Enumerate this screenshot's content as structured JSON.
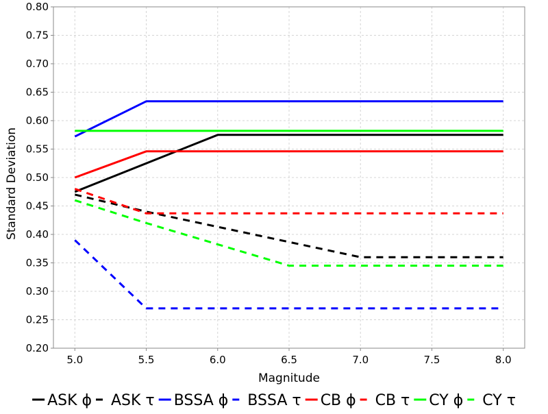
{
  "chart_data": {
    "type": "line",
    "title": "",
    "xlabel": "Magnitude",
    "ylabel": "Standard Deviation",
    "xlim": [
      4.85,
      8.15
    ],
    "ylim": [
      0.2,
      0.8
    ],
    "xticks": [
      "5.0",
      "5.5",
      "6.0",
      "6.5",
      "7.0",
      "7.5",
      "8.0"
    ],
    "yticks": [
      "0.20",
      "0.25",
      "0.30",
      "0.35",
      "0.40",
      "0.45",
      "0.50",
      "0.55",
      "0.60",
      "0.65",
      "0.70",
      "0.75",
      "0.80"
    ],
    "grid": true,
    "legend_position": "bottom",
    "series": [
      {
        "name": "ASK ϕ",
        "color": "#000000",
        "dashed": false,
        "x": [
          5.0,
          6.0,
          8.0
        ],
        "y": [
          0.475,
          0.575,
          0.575
        ]
      },
      {
        "name": "ASK τ",
        "color": "#000000",
        "dashed": true,
        "x": [
          5.0,
          5.5,
          7.0,
          8.0
        ],
        "y": [
          0.47,
          0.44,
          0.36,
          0.36
        ]
      },
      {
        "name": "BSSA ϕ",
        "color": "#0000ff",
        "dashed": false,
        "x": [
          5.0,
          5.5,
          8.0
        ],
        "y": [
          0.572,
          0.634,
          0.634
        ]
      },
      {
        "name": "BSSA τ",
        "color": "#0000ff",
        "dashed": true,
        "x": [
          5.0,
          5.5,
          8.0
        ],
        "y": [
          0.39,
          0.27,
          0.27
        ]
      },
      {
        "name": "CB ϕ",
        "color": "#ff0000",
        "dashed": false,
        "x": [
          5.0,
          5.5,
          8.0
        ],
        "y": [
          0.5,
          0.546,
          0.546
        ]
      },
      {
        "name": "CB τ",
        "color": "#ff0000",
        "dashed": true,
        "x": [
          5.0,
          5.5,
          8.0
        ],
        "y": [
          0.48,
          0.437,
          0.437
        ]
      },
      {
        "name": "CY ϕ",
        "color": "#00ff00",
        "dashed": false,
        "x": [
          5.0,
          8.0
        ],
        "y": [
          0.582,
          0.582
        ]
      },
      {
        "name": "CY τ",
        "color": "#00ff00",
        "dashed": true,
        "x": [
          5.0,
          5.5,
          6.5,
          8.0
        ],
        "y": [
          0.46,
          0.42,
          0.345,
          0.345
        ]
      }
    ]
  }
}
